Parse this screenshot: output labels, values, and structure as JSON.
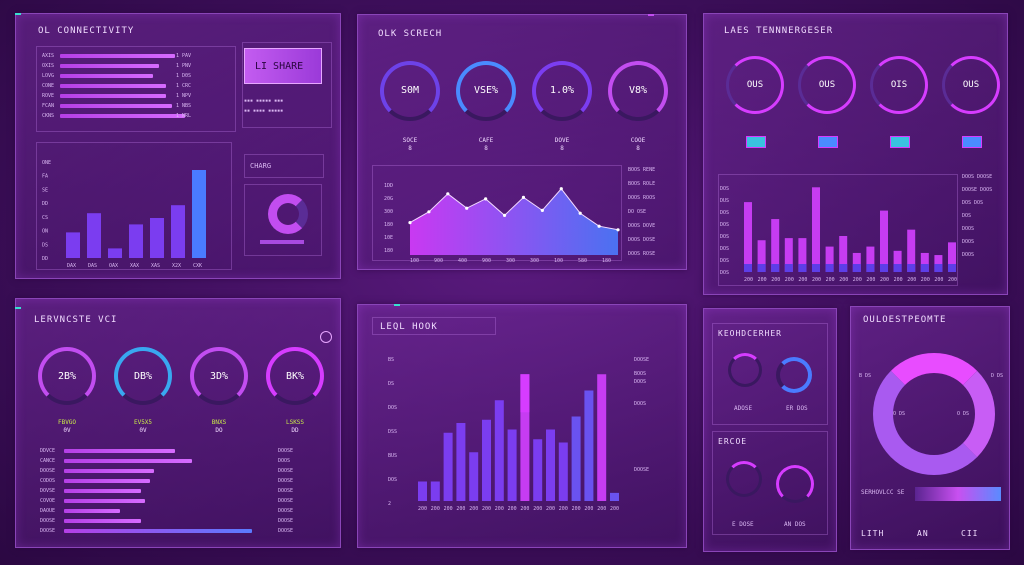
{
  "colors": {
    "magenta": "#d63cff",
    "violet": "#7b3df0",
    "blue": "#4a7bff",
    "cyan": "#39e0d0",
    "lime": "#c8e84a"
  },
  "panels": {
    "p1": {
      "title": "OL CONNECTIVITY",
      "badge": "LI SHARE",
      "sub_title": "CHARG",
      "bars": [
        {
          "label": "AXIS",
          "value": 0.72,
          "tag": "1 PAV"
        },
        {
          "label": "OXIS",
          "value": 0.62,
          "tag": "1 PNV"
        },
        {
          "label": "LOVG",
          "value": 0.58,
          "tag": "1 D0S"
        },
        {
          "label": "CONE",
          "value": 0.66,
          "tag": "1 CRC"
        },
        {
          "label": "ROVE",
          "value": 0.66,
          "tag": "1 NPV"
        },
        {
          "label": "FCAN",
          "value": 0.7,
          "tag": "1 NBS"
        },
        {
          "label": "CKNS",
          "value": 0.78,
          "tag": "1 NRL"
        }
      ],
      "chart_data": {
        "type": "bar",
        "categories": [
          "DAX",
          "DAS",
          "OAX",
          "XAX",
          "XAS",
          "X2X",
          "CXK"
        ],
        "values": [
          16,
          28,
          6,
          21,
          25,
          33,
          55
        ],
        "yticks": [
          "DD",
          "DS",
          "ON",
          "CS",
          "DD",
          "SE",
          "FA",
          "ONE"
        ]
      }
    },
    "p2": {
      "title": "OLK SCRECH",
      "rings": [
        {
          "label": "S0M",
          "sub": "SOCE",
          "val": "8"
        },
        {
          "label": "VSE%",
          "sub": "CAFE",
          "val": "8"
        },
        {
          "label": "1.0%",
          "sub": "DOVE",
          "val": "8"
        },
        {
          "label": "V8%",
          "sub": "COOE",
          "val": "8"
        }
      ],
      "chart_data": {
        "type": "area",
        "x": [
          0,
          1,
          2,
          3,
          4,
          5,
          6,
          7,
          8,
          9,
          10,
          11
        ],
        "values": [
          45,
          60,
          85,
          65,
          78,
          55,
          80,
          62,
          92,
          58,
          40,
          35
        ],
        "yticks": [
          "1DD",
          "20G",
          "300",
          "180",
          "10E",
          "180"
        ],
        "xticks": [
          "100",
          "900",
          "400",
          "900",
          "300",
          "300",
          "100",
          "580",
          "180"
        ]
      },
      "legend": [
        "BOOS RENE",
        "BOOS ROLE",
        "DOOS ROOS",
        "DO OSE",
        "DOOS DOVE",
        "DOOS DOSE",
        "DOOS ROSE"
      ]
    },
    "p3": {
      "title": "LAES TENNNERGESER",
      "rings": [
        {
          "label": "OUS",
          "pct": 0.72
        },
        {
          "label": "OUS",
          "pct": 0.55
        },
        {
          "label": "OIS",
          "pct": 0.68
        },
        {
          "label": "OUS",
          "pct": 0.78
        }
      ],
      "chart_data": {
        "type": "bar",
        "categories": [
          "200",
          "200",
          "200",
          "200",
          "200",
          "200",
          "200",
          "200",
          "200",
          "200",
          "200",
          "200",
          "200",
          "200",
          "200",
          "200"
        ],
        "values": [
          66,
          30,
          50,
          32,
          32,
          80,
          24,
          34,
          18,
          24,
          58,
          20,
          40,
          18,
          16,
          28
        ],
        "yticks": [
          "DOS",
          "DUS",
          "DOS",
          "DOS",
          "DOS",
          "DOS",
          "DOS",
          "DOS"
        ]
      },
      "legend": [
        "DOOS DOOSE",
        "DOOSE DOOS",
        "DOS DOS",
        "DOS",
        "DOOS",
        "DOOS",
        "DOOS"
      ]
    },
    "p4": {
      "title": "LERVNCSTE VCI",
      "rings": [
        {
          "label": "2B%",
          "sub": "FBVGO",
          "val": "0V"
        },
        {
          "label": "DB%",
          "sub": "EV5X5",
          "val": "0V"
        },
        {
          "label": "3D%",
          "sub": "BNXS",
          "val": "DO"
        },
        {
          "label": "BK%",
          "sub": "LSKSS",
          "val": "DD"
        }
      ],
      "bars": [
        {
          "label": "DDVCE",
          "value": 0.52,
          "tag": "DOOSE"
        },
        {
          "label": "CANCE",
          "value": 0.6,
          "tag": "DOOS"
        },
        {
          "label": "DOOSE",
          "value": 0.42,
          "tag": "DOOSE"
        },
        {
          "label": "CODOS",
          "value": 0.4,
          "tag": "DOOSE"
        },
        {
          "label": "DOVSE",
          "value": 0.36,
          "tag": "DOOSE"
        },
        {
          "label": "COVOE",
          "value": 0.38,
          "tag": "DOOSE"
        },
        {
          "label": "DAOUE",
          "value": 0.26,
          "tag": "DOOSE"
        },
        {
          "label": "DOOSE",
          "value": 0.36,
          "tag": "DOOSE"
        },
        {
          "label": "DOOSE",
          "value": 0.88,
          "tag": "DOOSE"
        }
      ]
    },
    "p5": {
      "title": "LEQL HOOK",
      "chart_data": {
        "type": "bar",
        "categories": [
          "200",
          "200",
          "200",
          "200",
          "200",
          "200",
          "200",
          "200",
          "200",
          "200",
          "200",
          "200",
          "200",
          "200",
          "200",
          "200"
        ],
        "values": [
          12,
          12,
          42,
          48,
          30,
          50,
          62,
          44,
          78,
          38,
          44,
          36,
          52,
          68,
          78,
          5
        ],
        "yticks": [
          "BS",
          "DS",
          "DOS",
          "DSS",
          "BUS",
          "DOS",
          "2"
        ]
      },
      "legend": [
        "DOOSE",
        "BOOS",
        "DOOS",
        "DOOS",
        "DOOSE"
      ]
    },
    "p6": {
      "title": "KEOHDCERHER",
      "title2": "ERCOE",
      "rows": [
        {
          "labels": [
            "ADOSE",
            "ER DOS"
          ]
        },
        {
          "labels": [
            "E DOSE",
            "AN DOS"
          ]
        }
      ]
    },
    "p7": {
      "title": "OULOESTPEOMTE",
      "ring_pct": 0.78,
      "labels": [
        "B DS",
        "D DS",
        "O DS",
        "O DS"
      ],
      "footer": "SERHOVLCC SE",
      "stats": [
        "LITH",
        "AN",
        "CII"
      ]
    }
  }
}
